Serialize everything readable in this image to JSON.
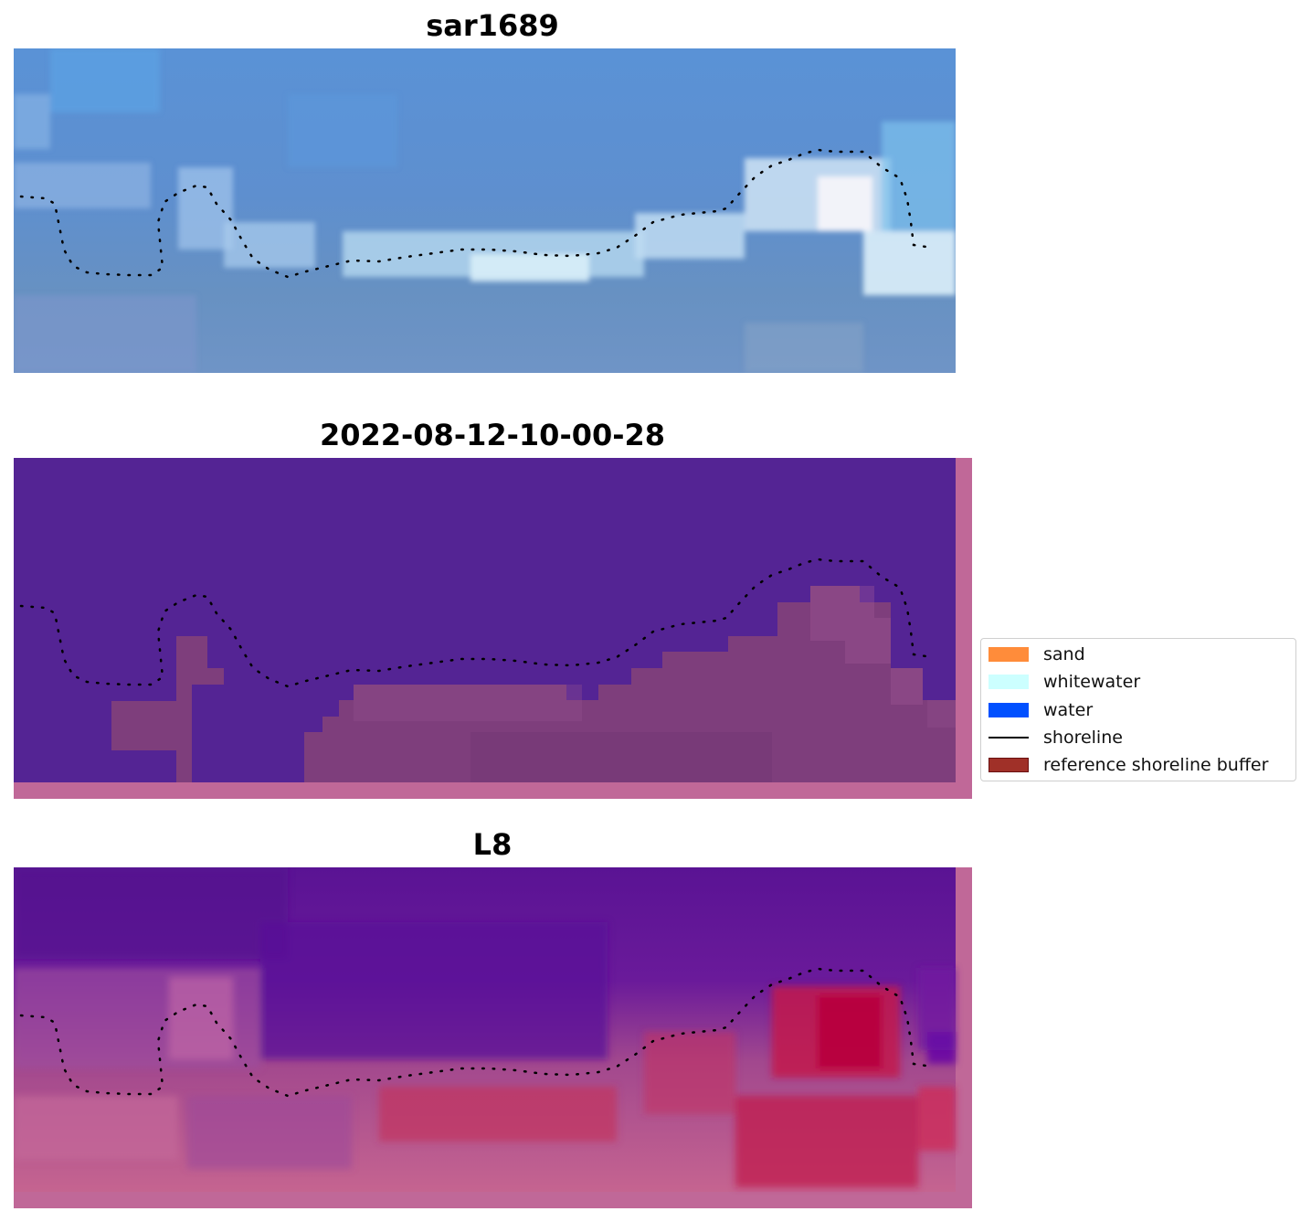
{
  "panels": [
    {
      "title": "sar1689",
      "kind": "rgb"
    },
    {
      "title": "2022-08-12-10-00-28",
      "kind": "classified"
    },
    {
      "title": "L8",
      "kind": "index"
    }
  ],
  "legend": {
    "items": [
      {
        "label": "sand",
        "color": "#ff8c3a",
        "type": "patch"
      },
      {
        "label": "whitewater",
        "color": "#ccffff",
        "type": "patch"
      },
      {
        "label": "water",
        "color": "#0050ff",
        "type": "patch"
      },
      {
        "label": "shoreline",
        "color": "#000000",
        "type": "line"
      },
      {
        "label": "reference shoreline buffer",
        "color": "#a03028",
        "edge": "#6a1010",
        "type": "patch"
      }
    ]
  },
  "colors": {
    "buffer": "#c06898",
    "water_class": "#542494",
    "class_buffer_overlap": "#7e3e7c",
    "ocean_rgb": "#5a8ccc",
    "whitewater_rgb": "#cfe6f4"
  }
}
